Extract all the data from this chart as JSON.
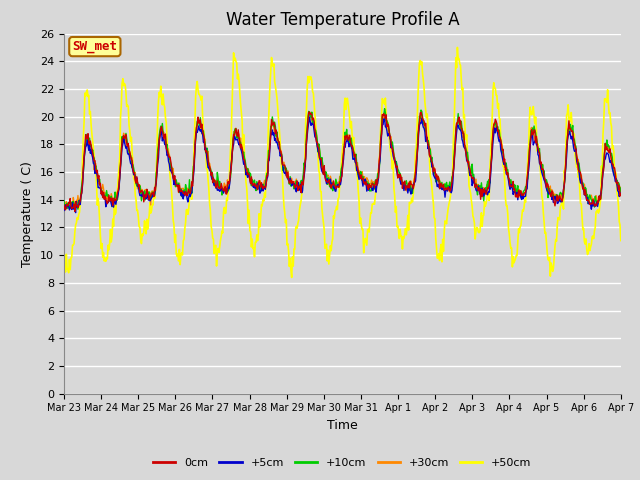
{
  "title": "Water Temperature Profile A",
  "xlabel": "Time",
  "ylabel": "Temperature ( C)",
  "ylim": [
    0,
    26
  ],
  "yticks": [
    0,
    2,
    4,
    6,
    8,
    10,
    12,
    14,
    16,
    18,
    20,
    22,
    24,
    26
  ],
  "date_labels": [
    "Mar 23",
    "Mar 24",
    "Mar 25",
    "Mar 26",
    "Mar 27",
    "Mar 28",
    "Mar 29",
    "Mar 30",
    "Mar 31",
    "Apr 1",
    "Apr 2",
    "Apr 3",
    "Apr 4",
    "Apr 5",
    "Apr 6",
    "Apr 7"
  ],
  "legend_labels": [
    "0cm",
    "+5cm",
    "+10cm",
    "+30cm",
    "+50cm"
  ],
  "legend_colors": [
    "#cc0000",
    "#0000cc",
    "#00cc00",
    "#ff8800",
    "#ffff00"
  ],
  "annotation_text": "SW_met",
  "annotation_bg": "#ffff99",
  "annotation_border": "#aa6600",
  "annotation_text_color": "#cc0000",
  "background_color": "#d8d8d8",
  "grid_color": "#ffffff",
  "title_fontsize": 12
}
